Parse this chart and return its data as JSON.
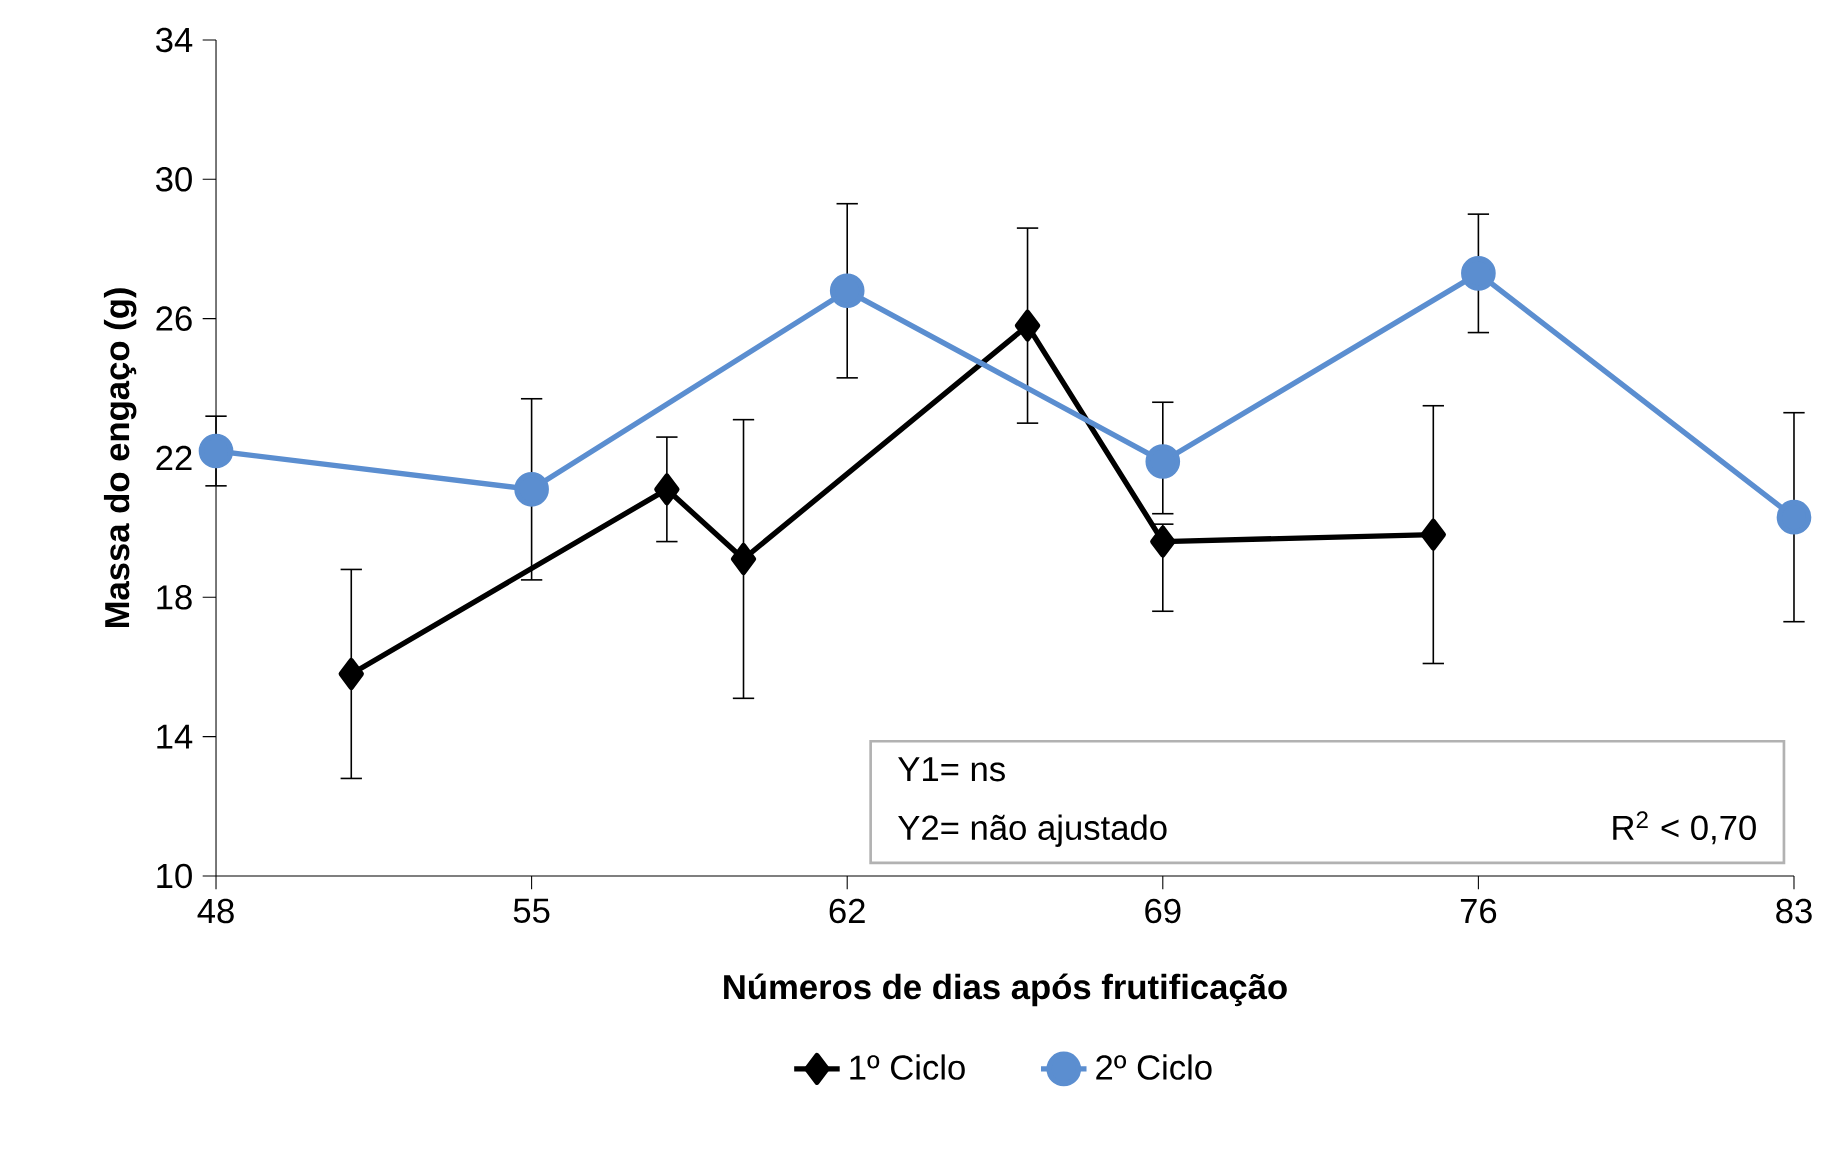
{
  "chart_data": {
    "type": "line",
    "xlabel": "Números de dias após frutificação",
    "ylabel": "Massa do engaço (g)",
    "xlim": [
      48,
      83
    ],
    "ylim": [
      10,
      34
    ],
    "xticks": [
      48,
      55,
      62,
      69,
      76,
      83
    ],
    "yticks": [
      10,
      14,
      18,
      22,
      26,
      30,
      34
    ],
    "legend": "bottom",
    "grid": false,
    "series": [
      {
        "name": "1º Ciclo",
        "color": "#000000",
        "marker": "diamond",
        "x": [
          51,
          58,
          59.7,
          66,
          69,
          75
        ],
        "values": [
          15.8,
          21.1,
          19.1,
          25.8,
          19.6,
          19.8
        ],
        "errors": [
          3.0,
          1.5,
          4.0,
          2.8,
          [
            17.6,
            20.1
          ],
          3.7
        ]
      },
      {
        "name": "2º Ciclo",
        "color": "#5b8ed0",
        "marker": "circle",
        "x": [
          48,
          55,
          62,
          69,
          76,
          83
        ],
        "values": [
          22.2,
          21.1,
          26.8,
          21.9,
          27.3,
          20.3
        ],
        "errors": [
          1.0,
          2.6,
          2.5,
          [
            20.4,
            23.6
          ],
          1.7,
          3.0
        ]
      }
    ],
    "annotations": [
      "Y1= ns",
      "Y2= não ajustado",
      "R$^{2}$ < 0,70"
    ]
  }
}
